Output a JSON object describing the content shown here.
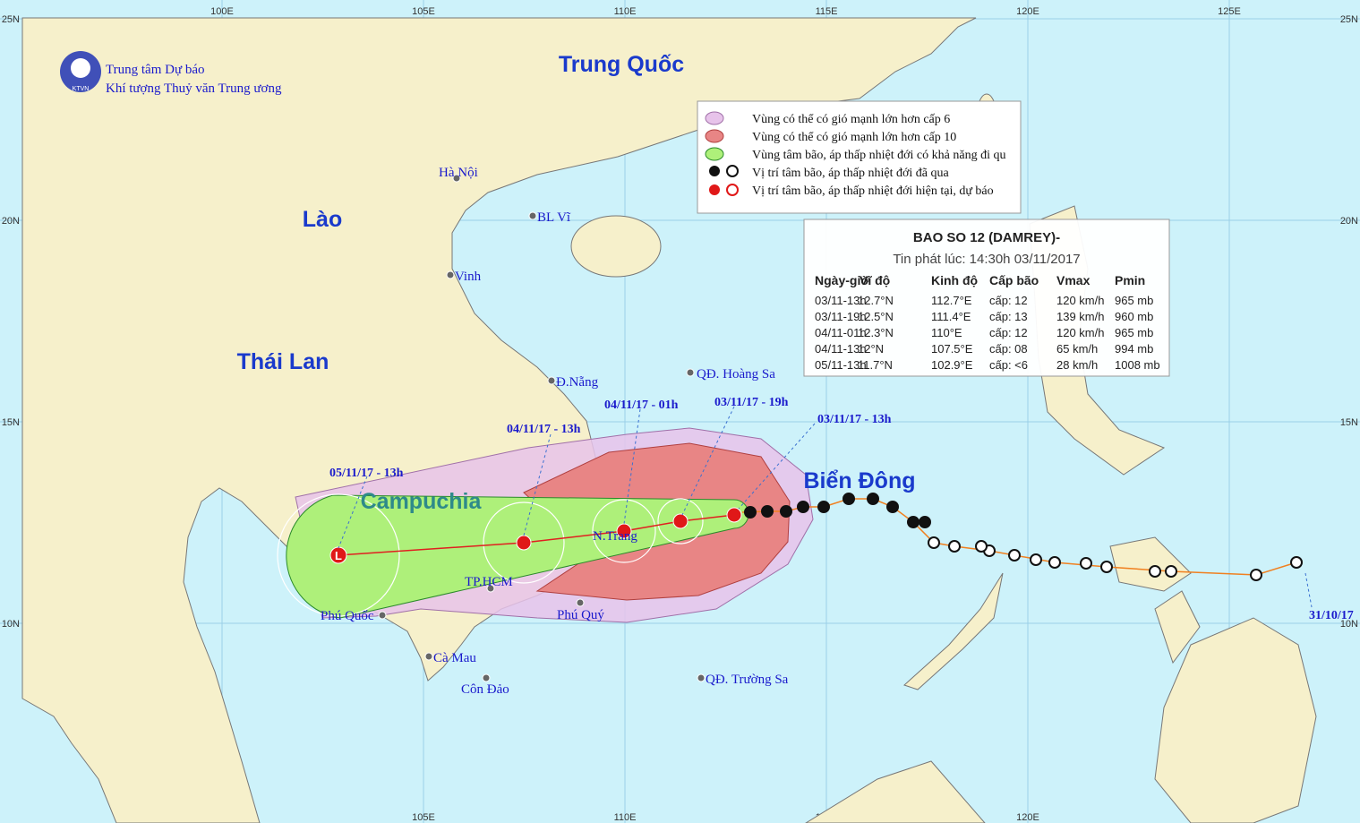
{
  "header": {
    "org": [
      "Trung tâm Dự báo",
      "Khí tượng Thuỷ văn Trung ương"
    ],
    "logo": "KTVN"
  },
  "grid": {
    "lon": [
      "100E",
      "105E",
      "110E",
      "115E",
      "120E",
      "125E"
    ],
    "lat": [
      "25N",
      "20N",
      "15N",
      "10N"
    ]
  },
  "countries": [
    "Trung Quốc",
    "Lào",
    "Thái Lan",
    "Campuchia",
    "Biển Đông"
  ],
  "places": [
    "Hà Nội",
    "BL Vĩ",
    "Vinh",
    "Đ.Nẵng",
    "QĐ. Hoàng Sa",
    "N.Trang",
    "TP.HCM",
    "Phú Quốc",
    "Phú Quý",
    "Cà Mau",
    "Côn Đảo",
    "QĐ. Trường Sa"
  ],
  "track_labels": [
    "05/11/17 - 13h",
    "04/11/17 - 13h",
    "04/11/17 - 01h",
    "03/11/17 - 19h",
    "03/11/17 - 13h",
    "31/10/17"
  ],
  "forecast_marker": "L",
  "legend": [
    "Vùng có thể có gió mạnh lớn hơn cấp 6",
    "Vùng có thể có gió mạnh lớn hơn cấp 10",
    "Vùng tâm bão, áp thấp nhiệt đới có khả năng đi qu",
    "Vị trí tâm bão, áp thấp nhiệt đới đã qua",
    "Vị trí tâm bão, áp thấp nhiệt đới hiện tại, dự báo"
  ],
  "bulletin": {
    "title": "BAO SO 12 (DAMREY)-",
    "issued": "Tin phát lúc: 14:30h 03/11/2017",
    "columns": [
      "Ngày-giờ",
      "Vĩ độ",
      "Kinh độ",
      "Cấp bão",
      "Vmax",
      "Pmin"
    ],
    "rows": [
      [
        "03/11-13h",
        "12.7°N",
        "112.7°E",
        "cấp: 12",
        "120 km/h",
        "965 mb"
      ],
      [
        "03/11-19h",
        "12.5°N",
        "111.4°E",
        "cấp: 13",
        "139 km/h",
        "960 mb"
      ],
      [
        "04/11-01h",
        "12.3°N",
        "110°E",
        "cấp: 12",
        "120 km/h",
        "965 mb"
      ],
      [
        "04/11-13h",
        "12°N",
        "107.5°E",
        "cấp: 08",
        "65 km/h",
        "994 mb"
      ],
      [
        "05/11-13h",
        "11.7°N",
        "102.9°E",
        "cấp: <6",
        "28 km/h",
        "1008 mb"
      ]
    ]
  }
}
